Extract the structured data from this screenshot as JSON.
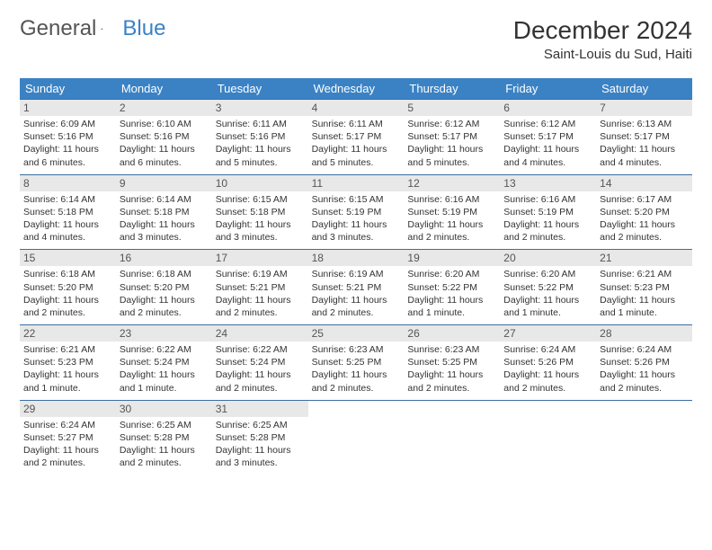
{
  "brand": {
    "part1": "General",
    "part2": "Blue"
  },
  "title": "December 2024",
  "location": "Saint-Louis du Sud, Haiti",
  "colors": {
    "header_bg": "#3b82c4",
    "header_fg": "#ffffff",
    "daynum_bg": "#e8e8e8",
    "border": "#3b6ea0",
    "text": "#333333"
  },
  "weekdays": [
    "Sunday",
    "Monday",
    "Tuesday",
    "Wednesday",
    "Thursday",
    "Friday",
    "Saturday"
  ],
  "weeks": [
    [
      {
        "n": "1",
        "sr": "Sunrise: 6:09 AM",
        "ss": "Sunset: 5:16 PM",
        "dl": "Daylight: 11 hours and 6 minutes."
      },
      {
        "n": "2",
        "sr": "Sunrise: 6:10 AM",
        "ss": "Sunset: 5:16 PM",
        "dl": "Daylight: 11 hours and 6 minutes."
      },
      {
        "n": "3",
        "sr": "Sunrise: 6:11 AM",
        "ss": "Sunset: 5:16 PM",
        "dl": "Daylight: 11 hours and 5 minutes."
      },
      {
        "n": "4",
        "sr": "Sunrise: 6:11 AM",
        "ss": "Sunset: 5:17 PM",
        "dl": "Daylight: 11 hours and 5 minutes."
      },
      {
        "n": "5",
        "sr": "Sunrise: 6:12 AM",
        "ss": "Sunset: 5:17 PM",
        "dl": "Daylight: 11 hours and 5 minutes."
      },
      {
        "n": "6",
        "sr": "Sunrise: 6:12 AM",
        "ss": "Sunset: 5:17 PM",
        "dl": "Daylight: 11 hours and 4 minutes."
      },
      {
        "n": "7",
        "sr": "Sunrise: 6:13 AM",
        "ss": "Sunset: 5:17 PM",
        "dl": "Daylight: 11 hours and 4 minutes."
      }
    ],
    [
      {
        "n": "8",
        "sr": "Sunrise: 6:14 AM",
        "ss": "Sunset: 5:18 PM",
        "dl": "Daylight: 11 hours and 4 minutes."
      },
      {
        "n": "9",
        "sr": "Sunrise: 6:14 AM",
        "ss": "Sunset: 5:18 PM",
        "dl": "Daylight: 11 hours and 3 minutes."
      },
      {
        "n": "10",
        "sr": "Sunrise: 6:15 AM",
        "ss": "Sunset: 5:18 PM",
        "dl": "Daylight: 11 hours and 3 minutes."
      },
      {
        "n": "11",
        "sr": "Sunrise: 6:15 AM",
        "ss": "Sunset: 5:19 PM",
        "dl": "Daylight: 11 hours and 3 minutes."
      },
      {
        "n": "12",
        "sr": "Sunrise: 6:16 AM",
        "ss": "Sunset: 5:19 PM",
        "dl": "Daylight: 11 hours and 2 minutes."
      },
      {
        "n": "13",
        "sr": "Sunrise: 6:16 AM",
        "ss": "Sunset: 5:19 PM",
        "dl": "Daylight: 11 hours and 2 minutes."
      },
      {
        "n": "14",
        "sr": "Sunrise: 6:17 AM",
        "ss": "Sunset: 5:20 PM",
        "dl": "Daylight: 11 hours and 2 minutes."
      }
    ],
    [
      {
        "n": "15",
        "sr": "Sunrise: 6:18 AM",
        "ss": "Sunset: 5:20 PM",
        "dl": "Daylight: 11 hours and 2 minutes."
      },
      {
        "n": "16",
        "sr": "Sunrise: 6:18 AM",
        "ss": "Sunset: 5:20 PM",
        "dl": "Daylight: 11 hours and 2 minutes."
      },
      {
        "n": "17",
        "sr": "Sunrise: 6:19 AM",
        "ss": "Sunset: 5:21 PM",
        "dl": "Daylight: 11 hours and 2 minutes."
      },
      {
        "n": "18",
        "sr": "Sunrise: 6:19 AM",
        "ss": "Sunset: 5:21 PM",
        "dl": "Daylight: 11 hours and 2 minutes."
      },
      {
        "n": "19",
        "sr": "Sunrise: 6:20 AM",
        "ss": "Sunset: 5:22 PM",
        "dl": "Daylight: 11 hours and 1 minute."
      },
      {
        "n": "20",
        "sr": "Sunrise: 6:20 AM",
        "ss": "Sunset: 5:22 PM",
        "dl": "Daylight: 11 hours and 1 minute."
      },
      {
        "n": "21",
        "sr": "Sunrise: 6:21 AM",
        "ss": "Sunset: 5:23 PM",
        "dl": "Daylight: 11 hours and 1 minute."
      }
    ],
    [
      {
        "n": "22",
        "sr": "Sunrise: 6:21 AM",
        "ss": "Sunset: 5:23 PM",
        "dl": "Daylight: 11 hours and 1 minute."
      },
      {
        "n": "23",
        "sr": "Sunrise: 6:22 AM",
        "ss": "Sunset: 5:24 PM",
        "dl": "Daylight: 11 hours and 1 minute."
      },
      {
        "n": "24",
        "sr": "Sunrise: 6:22 AM",
        "ss": "Sunset: 5:24 PM",
        "dl": "Daylight: 11 hours and 2 minutes."
      },
      {
        "n": "25",
        "sr": "Sunrise: 6:23 AM",
        "ss": "Sunset: 5:25 PM",
        "dl": "Daylight: 11 hours and 2 minutes."
      },
      {
        "n": "26",
        "sr": "Sunrise: 6:23 AM",
        "ss": "Sunset: 5:25 PM",
        "dl": "Daylight: 11 hours and 2 minutes."
      },
      {
        "n": "27",
        "sr": "Sunrise: 6:24 AM",
        "ss": "Sunset: 5:26 PM",
        "dl": "Daylight: 11 hours and 2 minutes."
      },
      {
        "n": "28",
        "sr": "Sunrise: 6:24 AM",
        "ss": "Sunset: 5:26 PM",
        "dl": "Daylight: 11 hours and 2 minutes."
      }
    ],
    [
      {
        "n": "29",
        "sr": "Sunrise: 6:24 AM",
        "ss": "Sunset: 5:27 PM",
        "dl": "Daylight: 11 hours and 2 minutes."
      },
      {
        "n": "30",
        "sr": "Sunrise: 6:25 AM",
        "ss": "Sunset: 5:28 PM",
        "dl": "Daylight: 11 hours and 2 minutes."
      },
      {
        "n": "31",
        "sr": "Sunrise: 6:25 AM",
        "ss": "Sunset: 5:28 PM",
        "dl": "Daylight: 11 hours and 3 minutes."
      },
      null,
      null,
      null,
      null
    ]
  ]
}
